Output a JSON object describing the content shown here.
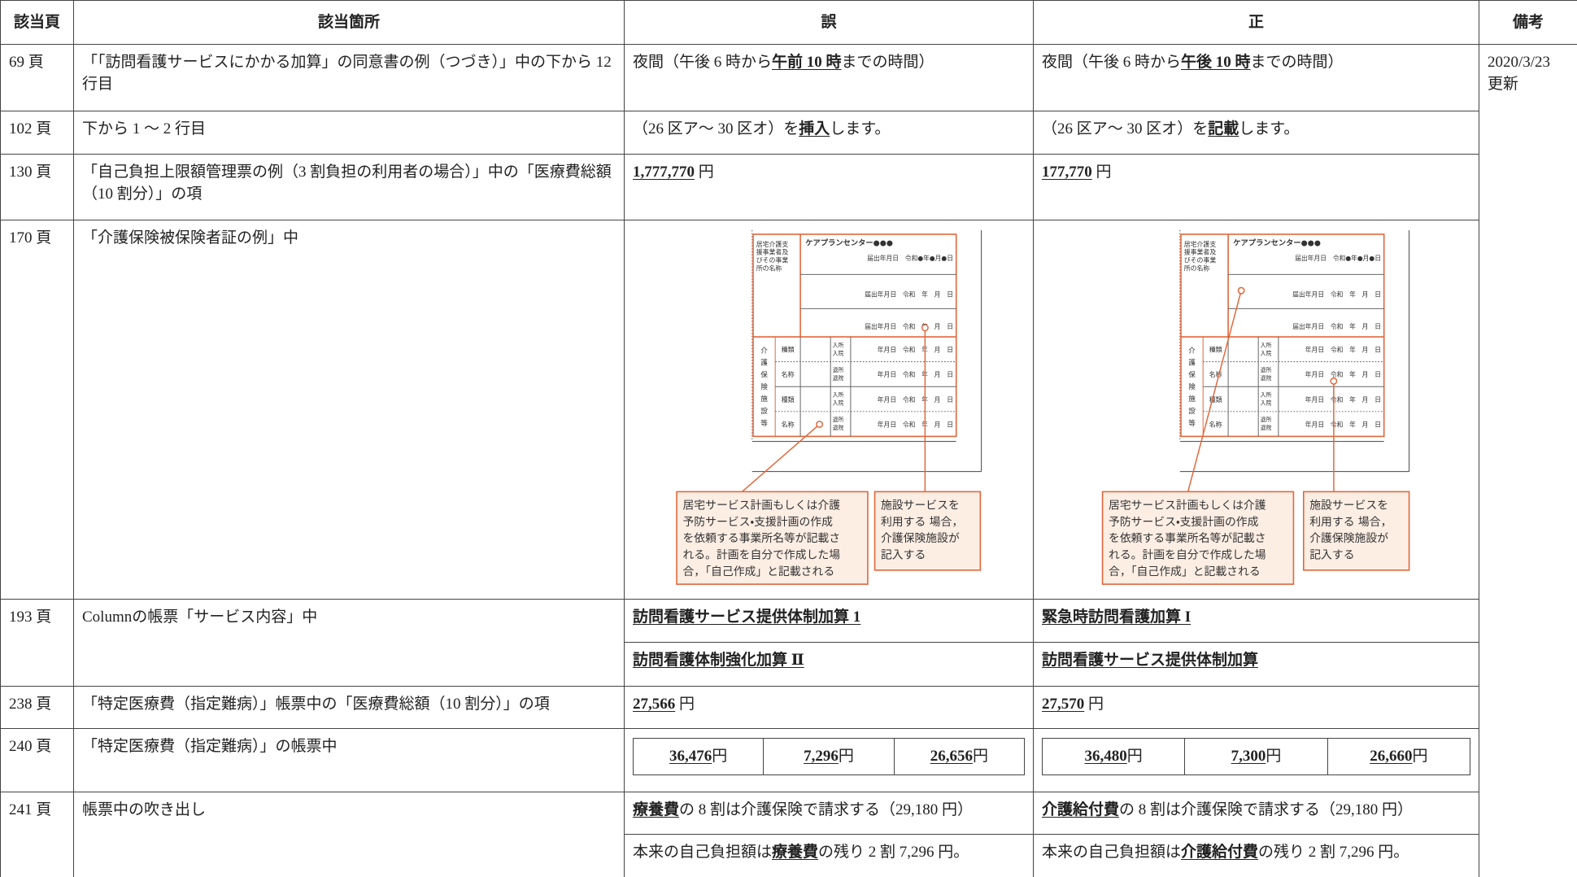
{
  "headers": [
    "該当頁",
    "該当箇所",
    "誤",
    "正",
    "備考"
  ],
  "remarks": [
    "2020/3/23",
    "更新"
  ],
  "rows": [
    {
      "page": "69 頁",
      "location": "「「訪問看護サービスにかかる加算」の同意書の例（つづき）」中の下から 12 行目",
      "wrong": [
        [
          "夜間（午後 6 時から",
          {
            "text": "午前 10 時",
            "em": true
          },
          "までの時間）"
        ]
      ],
      "right": [
        [
          "夜間（午後 6 時から",
          {
            "text": "午後 10 時",
            "em": true
          },
          "までの時間）"
        ]
      ]
    },
    {
      "page": "102 頁",
      "location": "下から 1 ～ 2 行目",
      "wrong": [
        [
          "（26 区ア～ 30 区オ）を",
          {
            "text": "挿入",
            "em": true
          },
          "します。"
        ]
      ],
      "right": [
        [
          "（26 区ア～ 30 区オ）を",
          {
            "text": "記載",
            "em": true
          },
          "します。"
        ]
      ]
    },
    {
      "page": "130 頁",
      "location": "「自己負担上限額管理票の例（3 割負担の利用者の場合）」中の「医療費総額（10 割分）」の項",
      "wrong": [
        [
          {
            "text": "1,777,770",
            "em": true
          },
          " 円"
        ]
      ],
      "right": [
        [
          {
            "text": "177,770",
            "em": true
          },
          " 円"
        ]
      ]
    },
    {
      "page": "170 頁",
      "location": "「介護保険被保険者証の例」中"
    },
    {
      "page": "193 頁",
      "location": "Columnの帳票「サービス内容」中",
      "wrong": [
        [
          {
            "text": "訪問看護サービス提供体制加算 1",
            "em": true
          }
        ],
        [
          {
            "text": "訪問看護体制強化加算 Ⅱ",
            "em": true
          }
        ]
      ],
      "right": [
        [
          {
            "text": "緊急時訪問看護加算 I",
            "em": true
          }
        ],
        [
          {
            "text": "訪問看護サービス提供体制加算",
            "em": true
          }
        ]
      ]
    },
    {
      "page": "238 頁",
      "location": "「特定医療費（指定難病）」帳票中の「医療費総額（10 割分）」の項",
      "wrong": [
        [
          {
            "text": "27,566",
            "em": true
          },
          " 円"
        ]
      ],
      "right": [
        [
          {
            "text": "27,570",
            "em": true
          },
          " 円"
        ]
      ]
    },
    {
      "page": "240 頁",
      "location": "「特定医療費（指定難病）」の帳票中",
      "wrong_boxes": [
        [
          {
            "text": "36,476",
            "em": true
          },
          " 円"
        ],
        [
          {
            "text": "7,296",
            "em": true
          },
          " 円"
        ],
        [
          {
            "text": "26,656",
            "em": true
          },
          " 円"
        ]
      ],
      "right_boxes": [
        [
          {
            "text": "36,480",
            "em": true
          },
          " 円"
        ],
        [
          {
            "text": "7,300",
            "em": true
          },
          " 円"
        ],
        [
          {
            "text": "26,660",
            "em": true
          },
          " 円"
        ]
      ]
    },
    {
      "page": "241 頁",
      "location": "帳票中の吹き出し",
      "wrong": [
        [
          {
            "text": "療養費",
            "em": true
          },
          "の 8 割は介護保険で請求する（29,180 円）"
        ],
        [
          "本来の自己負担額は",
          {
            "text": "療養費",
            "em": true
          },
          "の残り 2 割 7,296 円。"
        ]
      ],
      "right": [
        [
          {
            "text": "介護給付費",
            "em": true
          },
          "の 8 割は介護保険で請求する（29,180 円）"
        ],
        [
          "本来の自己負担額は",
          {
            "text": "介護給付費",
            "em": true
          },
          "の残り 2 割 7,296 円。"
        ]
      ]
    }
  ],
  "figure": {
    "office_label": [
      "居宅介護支",
      "援事業者及",
      "びその事業",
      "所の名称"
    ],
    "office_name": "ケアプランセンター●●●",
    "date_filled": "届出年月日　令和●年●月●日",
    "date_blank": "届出年月日　令和　年　月　日",
    "facility_label": [
      "介",
      "護",
      "保",
      "険",
      "施",
      "設",
      "等"
    ],
    "kind": "種類",
    "name": "名称",
    "admit": [
      "入所",
      "入院"
    ],
    "leave": [
      "退所",
      "退院"
    ],
    "date_row": "年月日　令和　年　月　日",
    "callout_plan": [
      "居宅サービス計画もしくは介護",
      "予防サービス・支援計画の作成",
      "を依頼する事業所名等が記載さ",
      "れる。計画を自分で作成した場",
      "合，「自己作成」と記載される"
    ],
    "callout_facility": [
      "施設サービスを",
      "利用する 場合，",
      "介護保険施設が",
      "記入する"
    ]
  }
}
